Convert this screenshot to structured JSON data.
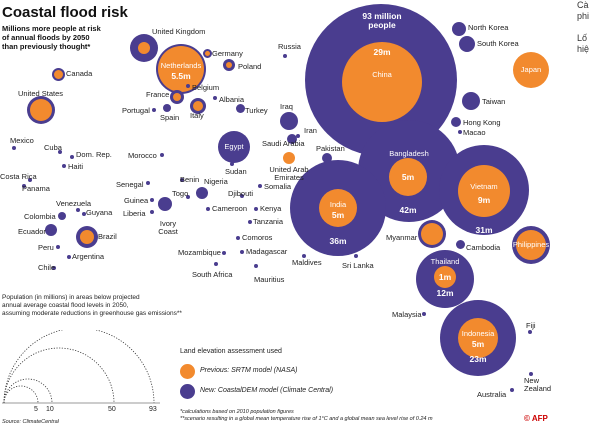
{
  "title": "Coastal flood risk",
  "subtitle": [
    "Millions more people at risk",
    "of annual floods by 2050",
    "than previously thought*"
  ],
  "side_text": [
    "Cà",
    "phi",
    "Lố",
    "hiệ"
  ],
  "bubbles": {
    "china": {
      "name": "China",
      "outer": "93 million\npeople",
      "inner": "29m"
    },
    "bangladesh": {
      "name": "Bangladesh",
      "inner": "5m",
      "outer": "42m"
    },
    "india": {
      "name": "India",
      "inner": "5m",
      "outer": "36m"
    },
    "vietnam": {
      "name": "Vietnam",
      "inner": "9m",
      "outer": "31m"
    },
    "thailand": {
      "name": "Thailand",
      "inner": "1m",
      "outer": "12m"
    },
    "indonesia": {
      "name": "Indonesia",
      "inner": "5m",
      "outer": "23m"
    },
    "netherlands": {
      "name": "Netherlands",
      "inner": "5.5m"
    },
    "japan": {
      "name": "Japan"
    },
    "philippines": {
      "name": "Philippines"
    },
    "egypt": {
      "name": "Egypt"
    }
  },
  "labels": [
    "United Kingdom",
    "Germany",
    "Poland",
    "Russia",
    "Canada",
    "United States",
    "France",
    "Belgium",
    "Albania",
    "Portugal",
    "Spain",
    "Italy",
    "Turkey",
    "Iraq",
    "Iran",
    "Saudi Arabia",
    "Pakistan",
    "United Arab Emirates",
    "Mexico",
    "Cuba",
    "Dom. Rep.",
    "Haiti",
    "Costa Rica",
    "Panama",
    "Morocco",
    "Sudan",
    "Senegal",
    "Benin",
    "Nigeria",
    "Guinea",
    "Togo",
    "Djibouti",
    "Somalia",
    "Liberia",
    "Cameroon",
    "Kenya",
    "Venezuela",
    "Guyana",
    "Colombia",
    "Ivory Coast",
    "Tanzania",
    "Ecuador",
    "Brazil",
    "Comoros",
    "Peru",
    "Argentina",
    "Mozambique",
    "Madagascar",
    "Chile",
    "South Africa",
    "Mauritius",
    "Maldives",
    "Sri Lanka",
    "Myanmar",
    "Cambodia",
    "North Korea",
    "South Korea",
    "Taiwan",
    "Hong Kong",
    "Macao",
    "Malaysia",
    "Fiji",
    "New Zealand",
    "Australia"
  ],
  "population_note": [
    "Population (in millions) in areas below projected",
    "annual average coastal flood levels in 2050,",
    "assuming moderate reductions in greenhouse gas emissions**"
  ],
  "scale_ticks": [
    "5",
    "10",
    "50",
    "93"
  ],
  "source": "Source: ClimateCentral",
  "legend": {
    "heading": "Land elevation assessment used",
    "previous": "Previous: SRTM model (NASA)",
    "new": "New: CoastalDEM model (Climate Central)"
  },
  "footnotes": [
    "*calculations based on 2010 population figures",
    "**scenario resulting in a global mean temperature rise of 1°C and a global mean sea level rise of 0.24 m"
  ],
  "credit": "© AFP",
  "colors": {
    "new": "#4a3d8f",
    "previous": "#f28a2e"
  }
}
